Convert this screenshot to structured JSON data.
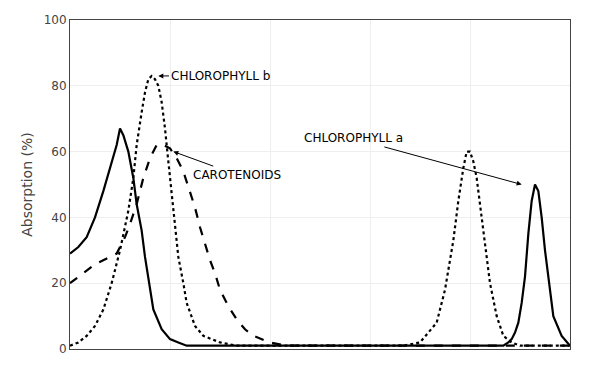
{
  "chart_data": {
    "type": "line",
    "ylabel": "Absorption (%)",
    "xlim": [
      400,
      700
    ],
    "ylim": [
      0,
      100
    ],
    "xticks": [
      460,
      520,
      580,
      640
    ],
    "yticks": [
      0,
      20,
      40,
      60,
      80,
      100
    ],
    "grid": true,
    "tick_labels": "y",
    "series": [
      {
        "color": "#000000",
        "line_style": "solid",
        "x": [
          400,
          405,
          410,
          415,
          420,
          425,
          428,
          430,
          432,
          435,
          438,
          440,
          443,
          445,
          448,
          450,
          455,
          460,
          465,
          470,
          475,
          480,
          485,
          490,
          495,
          500,
          510,
          520,
          530,
          540,
          550,
          560,
          570,
          580,
          590,
          600,
          610,
          620,
          630,
          635,
          640,
          645,
          650,
          655,
          660,
          663,
          665,
          667,
          669,
          671,
          673,
          675,
          677,
          679,
          681,
          683,
          685,
          688,
          690,
          695,
          700
        ],
        "values": [
          29,
          31,
          34,
          40,
          48,
          57,
          62,
          67,
          65,
          60,
          52,
          44,
          36,
          28,
          18,
          12,
          6,
          3,
          2,
          1,
          1,
          1,
          1,
          1,
          1,
          1,
          1,
          1,
          1,
          1,
          1,
          1,
          1,
          1,
          1,
          1,
          1,
          1,
          1,
          1,
          1,
          1,
          1,
          1,
          1,
          2,
          3,
          5,
          8,
          14,
          22,
          35,
          45,
          50,
          48,
          40,
          30,
          18,
          10,
          4,
          1
        ]
      },
      {
        "color": "#000000",
        "line_style": "dotted",
        "x": [
          400,
          405,
          410,
          415,
          420,
          425,
          430,
          435,
          438,
          440,
          443,
          445,
          447,
          449,
          451,
          453,
          455,
          457,
          459,
          461,
          463,
          465,
          468,
          470,
          475,
          480,
          490,
          500,
          510,
          520,
          530,
          540,
          550,
          560,
          570,
          580,
          590,
          600,
          610,
          620,
          625,
          630,
          633,
          636,
          638,
          640,
          642,
          644,
          646,
          648,
          650,
          652,
          654,
          656,
          658,
          660,
          665,
          670,
          680,
          690,
          700
        ],
        "values": [
          1,
          2,
          4,
          7,
          12,
          20,
          30,
          42,
          52,
          62,
          72,
          78,
          82,
          83,
          82,
          80,
          75,
          67,
          57,
          47,
          37,
          28,
          20,
          14,
          7,
          4,
          2,
          1,
          1,
          1,
          1,
          1,
          1,
          1,
          1,
          1,
          1,
          1,
          2,
          8,
          18,
          33,
          45,
          55,
          60,
          60,
          57,
          52,
          44,
          36,
          27,
          20,
          15,
          10,
          7,
          4,
          2,
          1,
          1,
          1,
          1
        ]
      },
      {
        "color": "#000000",
        "line_style": "dashed",
        "x": [
          400,
          405,
          408,
          410,
          413,
          416,
          420,
          425,
          428,
          430,
          433,
          436,
          440,
          444,
          448,
          452,
          456,
          460,
          464,
          468,
          472,
          475,
          478,
          481,
          484,
          487,
          490,
          495,
          500,
          505,
          510,
          520,
          530,
          540,
          550,
          560,
          570,
          580,
          590,
          600,
          620,
          640,
          660,
          680,
          700
        ],
        "values": [
          20,
          22,
          23,
          24,
          25,
          26,
          27,
          28,
          29,
          31,
          34,
          38,
          44,
          52,
          58,
          62,
          62,
          61,
          58,
          54,
          48,
          43,
          37,
          32,
          27,
          23,
          18,
          13,
          9,
          6,
          4,
          2,
          1,
          1,
          1,
          1,
          1,
          1,
          1,
          1,
          1,
          1,
          1,
          1,
          1
        ]
      }
    ],
    "annotations": [
      {
        "text": "CHLOROPHYLL b",
        "x": 453,
        "y": 83,
        "text_x": 490,
        "text_y": 83
      },
      {
        "text": "CHLOROPHYLL a",
        "x": 671,
        "y": 50,
        "text_x": 570,
        "text_y": 64
      },
      {
        "text": "CAROTENOIDS",
        "x": 462,
        "y": 60,
        "text_x": 500,
        "text_y": 53
      }
    ]
  }
}
